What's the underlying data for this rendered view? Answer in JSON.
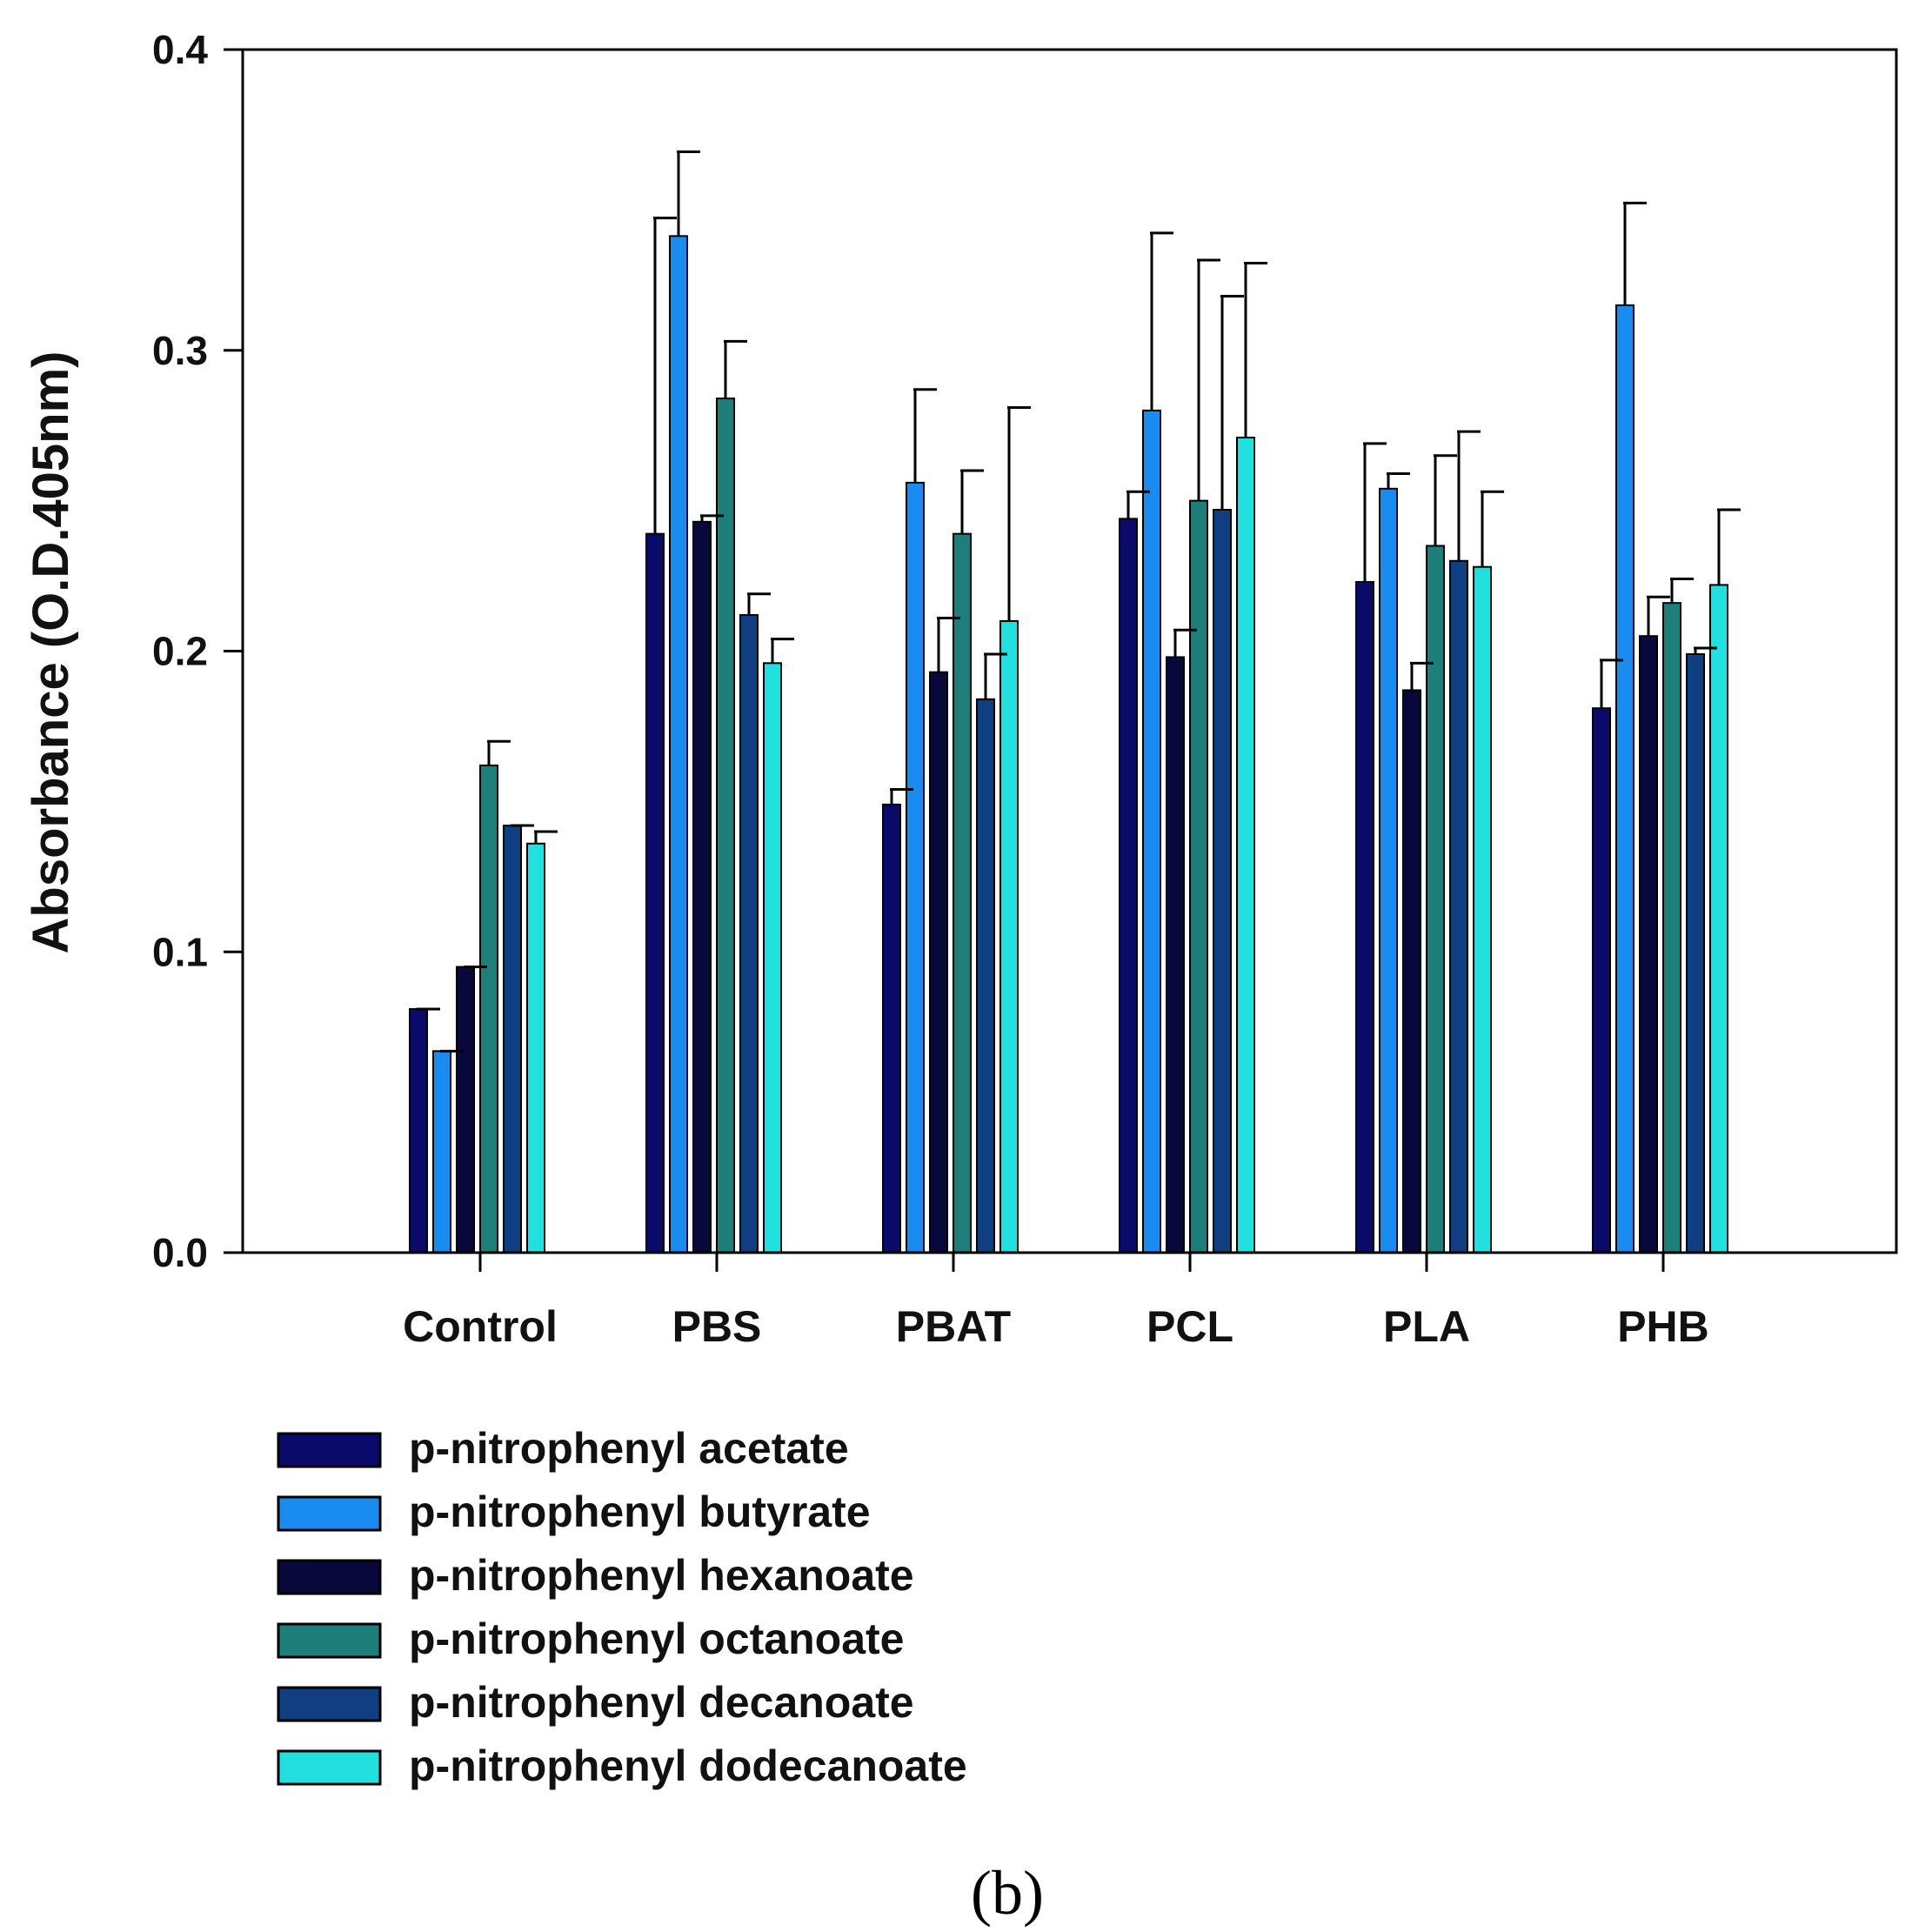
{
  "chart_data": {
    "type": "bar",
    "title": "",
    "xlabel": "",
    "ylabel": "Absorbance (O.D.405nm)",
    "ylim": [
      0.0,
      0.4
    ],
    "yticks": [
      "0.0",
      "0.1",
      "0.2",
      "0.3",
      "0.4"
    ],
    "categories": [
      "Control",
      "PBS",
      "PBAT",
      "PCL",
      "PLA",
      "PHB"
    ],
    "error_bars": "upper",
    "grid": false,
    "legend_position": "bottom-left",
    "series": [
      {
        "name": "p-nitrophenyl acetate",
        "color": "#0a0a6b",
        "values": [
          0.081,
          0.239,
          0.149,
          0.244,
          0.223,
          0.181
        ],
        "errors": [
          0.0,
          0.105,
          0.005,
          0.009,
          0.046,
          0.016
        ]
      },
      {
        "name": "p-nitrophenyl butyrate",
        "color": "#1a8cf0",
        "values": [
          0.067,
          0.338,
          0.256,
          0.28,
          0.254,
          0.315
        ],
        "errors": [
          0.0,
          0.028,
          0.031,
          0.059,
          0.005,
          0.034
        ]
      },
      {
        "name": "p-nitrophenyl hexanoate",
        "color": "#08083c",
        "values": [
          0.095,
          0.243,
          0.193,
          0.198,
          0.187,
          0.205
        ],
        "errors": [
          0.0,
          0.002,
          0.018,
          0.009,
          0.009,
          0.013
        ]
      },
      {
        "name": "p-nitrophenyl octanoate",
        "color": "#1e7f7a",
        "values": [
          0.162,
          0.284,
          0.239,
          0.25,
          0.235,
          0.216
        ],
        "errors": [
          0.008,
          0.019,
          0.021,
          0.08,
          0.03,
          0.008
        ]
      },
      {
        "name": "p-nitrophenyl decanoate",
        "color": "#0f3f80",
        "values": [
          0.142,
          0.212,
          0.184,
          0.247,
          0.23,
          0.199
        ],
        "errors": [
          0.0,
          0.007,
          0.015,
          0.071,
          0.043,
          0.002
        ]
      },
      {
        "name": "p-nitrophenyl dodecanoate",
        "color": "#22e0e0",
        "values": [
          0.136,
          0.196,
          0.21,
          0.271,
          0.228,
          0.222
        ],
        "errors": [
          0.004,
          0.008,
          0.071,
          0.058,
          0.025,
          0.025
        ]
      }
    ]
  },
  "panel_label": "(b)"
}
